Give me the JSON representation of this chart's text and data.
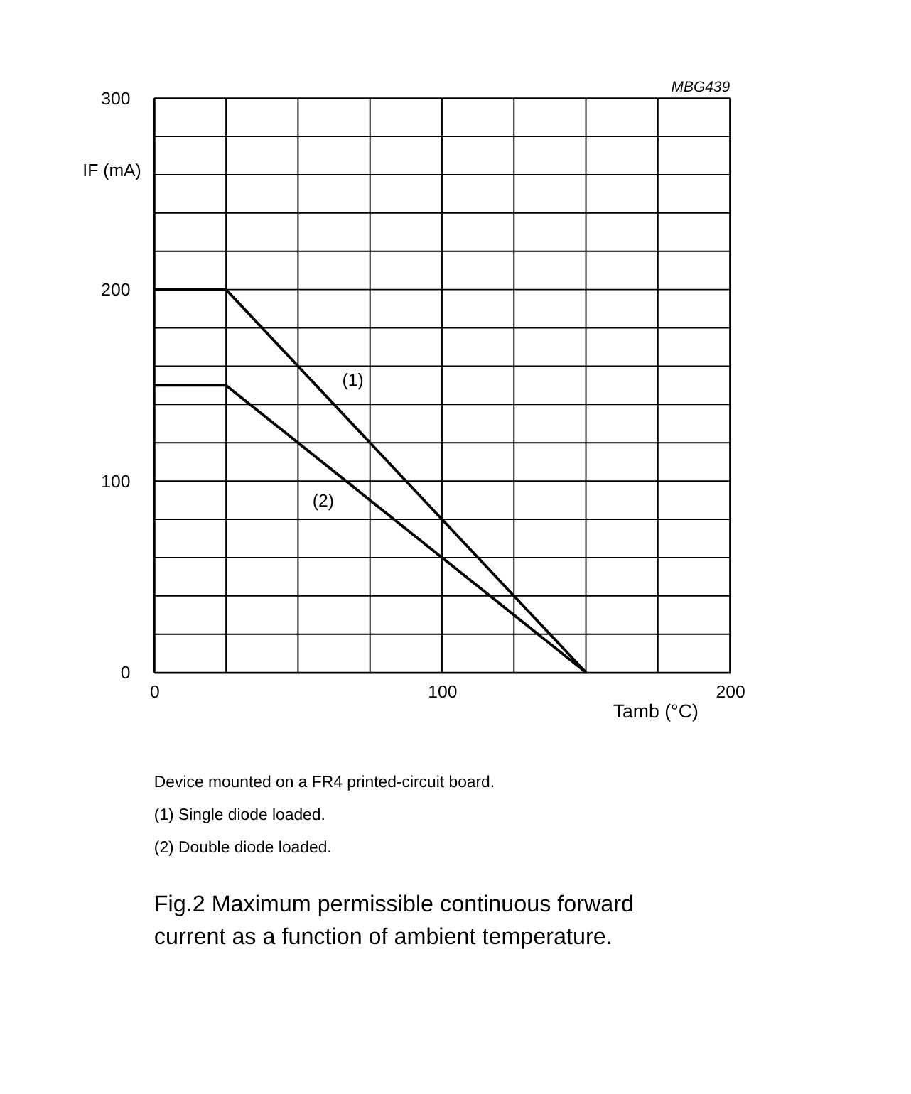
{
  "chart_data": {
    "type": "line",
    "title": "Fig.2   Maximum permissible continuous forward current as a function of ambient temperature.",
    "xlabel": "Tamb (°C)",
    "ylabel": "IF (mA)",
    "series": [
      {
        "name": "(1)",
        "x": [
          0,
          25,
          150
        ],
        "values": [
          200,
          200,
          0
        ],
        "color": "#000000"
      },
      {
        "name": "(2)",
        "x": [
          0,
          25,
          150
        ],
        "values": [
          150,
          150,
          0
        ],
        "color": "#000000"
      }
    ],
    "xlim": [
      0,
      200
    ],
    "ylim": [
      0,
      300
    ],
    "xticks": [
      0,
      {
        "value": 25,
        "label": null
      },
      {
        "value": 50,
        "label": null
      },
      {
        "value": 75,
        "label": null
      },
      100,
      {
        "value": 125,
        "label": null
      },
      {
        "value": 150,
        "label": null
      },
      {
        "value": 175,
        "label": null
      },
      200
    ],
    "yticks": [
      0,
      {
        "value": 20,
        "label": null
      },
      {
        "value": 40,
        "label": null
      },
      {
        "value": 60,
        "label": null
      },
      {
        "value": 80,
        "label": null
      },
      100,
      {
        "value": 120,
        "label": null
      },
      {
        "value": 140,
        "label": null
      },
      {
        "value": 160,
        "label": null
      },
      {
        "value": 180,
        "label": null
      },
      200,
      {
        "value": 220,
        "label": null
      },
      {
        "value": 240,
        "label": null
      },
      {
        "value": 260,
        "label": null
      },
      {
        "value": 280,
        "label": null
      },
      300
    ],
    "grid": true,
    "legend": false,
    "marker": "none",
    "line_style": "solid",
    "annotations": [
      "MBG439",
      "Device mounted on a FR4 printed-circuit board.",
      "(1)  Single diode loaded.",
      "(2)  Double diode loaded."
    ]
  }
}
